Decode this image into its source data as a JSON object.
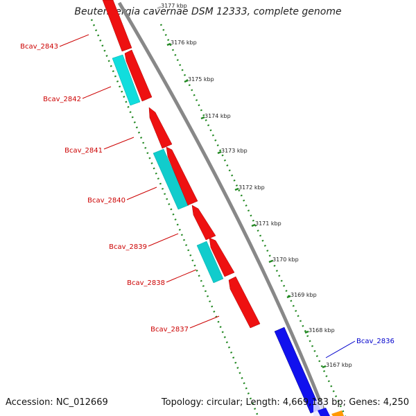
{
  "title": "Beutenbergia cavernae DSM 12333, complete genome",
  "footer": {
    "accession": "Accession: NC_012669",
    "topology": "Topology: circular;",
    "length": "Length: 4,669,183 bp;",
    "genes": "Genes: 4,250"
  },
  "colors": {
    "reverse_gene": "#ee1111",
    "reverse_feature": "#11dddd",
    "forward_gene": "#1111ee",
    "backbone": "#888888",
    "ticks": "#228822"
  },
  "scale_ticks": [
    "3177 kbp",
    "3176 kbp",
    "3175 kbp",
    "3174 kbp",
    "3173 kbp",
    "3172 kbp",
    "3171 kbp",
    "3170 kbp",
    "3169 kbp",
    "3168 kbp",
    "3167 kbp"
  ],
  "genes": [
    {
      "label": "Bcav_2843",
      "strand": "reverse"
    },
    {
      "label": "Bcav_2842",
      "strand": "reverse"
    },
    {
      "label": "Bcav_2841",
      "strand": "reverse"
    },
    {
      "label": "Bcav_2840",
      "strand": "reverse"
    },
    {
      "label": "Bcav_2839",
      "strand": "reverse"
    },
    {
      "label": "Bcav_2838",
      "strand": "reverse"
    },
    {
      "label": "Bcav_2837",
      "strand": "reverse"
    },
    {
      "label": "Bcav_2836",
      "strand": "forward"
    }
  ]
}
